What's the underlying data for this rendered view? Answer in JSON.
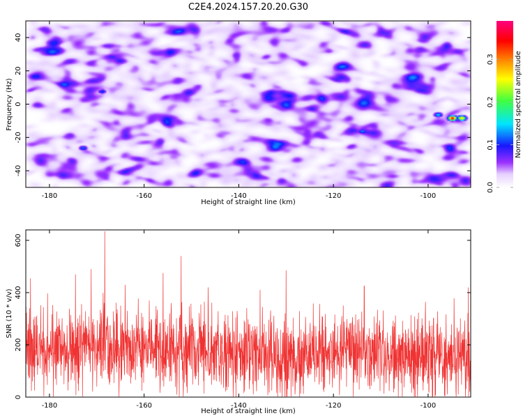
{
  "figure": {
    "title": "C2E4.2024.157.20.20.G30"
  },
  "chart_data": [
    {
      "type": "heatmap",
      "xlabel": "Height of straight line (km)",
      "ylabel": "Frequency (Hz)",
      "xlim": [
        -185,
        -91
      ],
      "ylim": [
        -50,
        50
      ],
      "xticks": [
        -180,
        -160,
        -140,
        -120,
        -100
      ],
      "yticks": [
        -40,
        -20,
        0,
        20,
        40
      ],
      "colorbar": {
        "label": "Normalized spectral amplitude",
        "range": [
          0.0,
          0.39
        ],
        "ticks": [
          0.0,
          0.1,
          0.2,
          0.3
        ],
        "tick_labels": [
          "0.0",
          "0.1",
          "0.2",
          "0.3"
        ],
        "colors": [
          "#ffffff",
          "#9b30ff",
          "#1818ff",
          "#00e5ff",
          "#40ff40",
          "#ffff00",
          "#ff8000",
          "#ff0000",
          "#ff0080"
        ]
      },
      "background_level": 0.05,
      "hotspots": [
        {
          "x": -95,
          "y": -8,
          "value": 0.36
        },
        {
          "x": -93,
          "y": -8,
          "value": 0.28
        },
        {
          "x": -98,
          "y": -6,
          "value": 0.15
        },
        {
          "x": -114,
          "y": -16,
          "value": 0.13
        },
        {
          "x": -173,
          "y": -26,
          "value": 0.12
        },
        {
          "x": -169,
          "y": 8,
          "value": 0.11
        }
      ]
    },
    {
      "type": "line",
      "xlabel": "Height of straight line (km)",
      "ylabel": "SNR (10 * v/v)",
      "xlim": [
        -185,
        -91
      ],
      "ylim": [
        0,
        640
      ],
      "xticks": [
        -180,
        -160,
        -140,
        -120,
        -100
      ],
      "yticks": [
        0,
        200,
        400,
        600
      ],
      "series": [
        {
          "color": "#f03232",
          "mean": 160,
          "peaks": [
            {
              "x": -168.3,
              "y": 635
            },
            {
              "x": -152.2,
              "y": 540
            },
            {
              "x": -171.2,
              "y": 490
            },
            {
              "x": -130.0,
              "y": 485
            },
            {
              "x": -174.5,
              "y": 470
            },
            {
              "x": -156.0,
              "y": 475
            },
            {
              "x": -113.5,
              "y": 425
            },
            {
              "x": -184.0,
              "y": 455
            },
            {
              "x": -91.5,
              "y": 420
            },
            {
              "x": -146.5,
              "y": 420
            },
            {
              "x": -135.5,
              "y": 410
            },
            {
              "x": -164.0,
              "y": 430
            }
          ]
        }
      ]
    }
  ]
}
